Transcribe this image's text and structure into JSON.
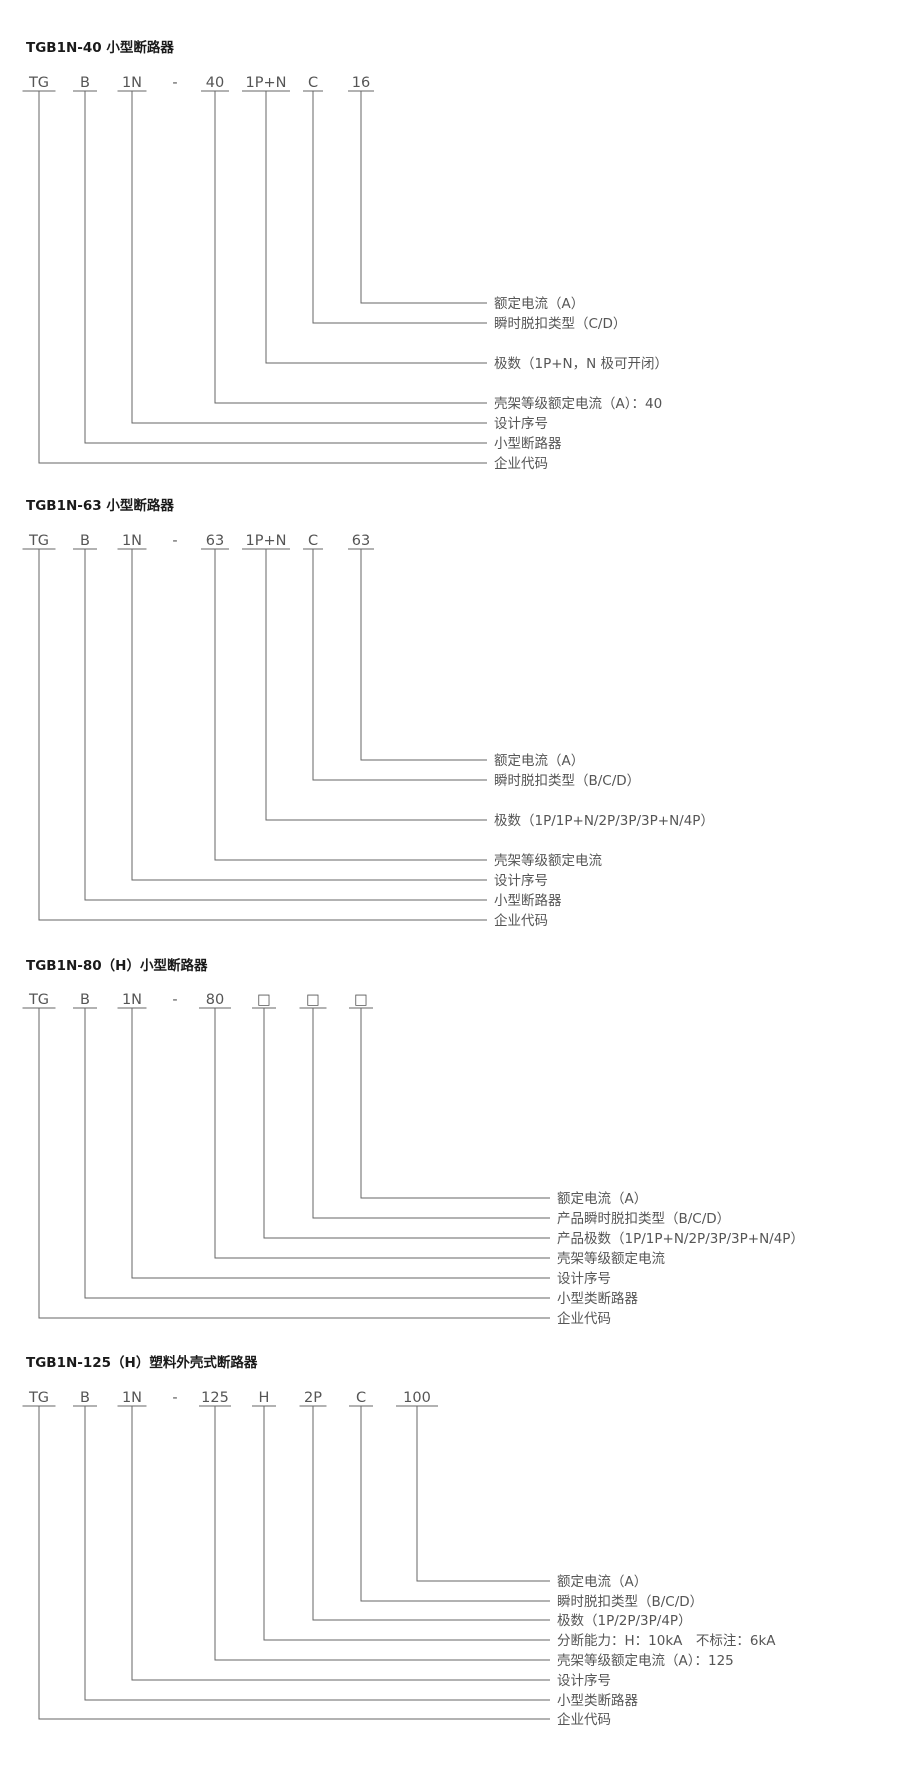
{
  "sections": [
    {
      "title": "TGB1N-40 小型断路器",
      "codes": [
        "TG",
        "B",
        "1N",
        "-",
        "40",
        "1P+N",
        "C",
        "16"
      ],
      "labels": [
        "额定电流（A）",
        "瞬时脱扣类型（C/D）",
        "极数（1P+N，N 极可开闭）",
        "壳架等级额定电流（A）：40",
        "设计序号",
        "小型断路器",
        "企业代码"
      ]
    },
    {
      "title": "TGB1N-63 小型断路器",
      "codes": [
        "TG",
        "B",
        "1N",
        "-",
        "63",
        "1P+N",
        "C",
        "63"
      ],
      "labels": [
        "额定电流（A）",
        "瞬时脱扣类型（B/C/D）",
        "极数（1P/1P+N/2P/3P/3P+N/4P）",
        "壳架等级额定电流",
        "设计序号",
        "小型断路器",
        "企业代码"
      ]
    },
    {
      "title": "TGB1N-80（H）小型断路器",
      "codes": [
        "TG",
        "B",
        "1N",
        "-",
        "80",
        "□",
        "□",
        "□"
      ],
      "labels": [
        "额定电流（A）",
        "产品瞬时脱扣类型（B/C/D）",
        "产品极数（1P/1P+N/2P/3P/3P+N/4P）",
        "壳架等级额定电流",
        "设计序号",
        "小型类断路器",
        "企业代码"
      ]
    },
    {
      "title": "TGB1N-125（H）塑料外壳式断路器",
      "codes": [
        "TG",
        "B",
        "1N",
        "-",
        "125",
        "H",
        "2P",
        "C",
        "100"
      ],
      "labels": [
        "额定电流（A）",
        "瞬时脱扣类型（B/C/D）",
        "极数（1P/2P/3P/4P）",
        "分断能力：H：10kA　不标注：6kA",
        "壳架等级额定电流（A）：125",
        "设计序号",
        "小型类断路器",
        "企业代码"
      ]
    }
  ],
  "colors": {
    "text": "#555555",
    "line": "#666666",
    "title": "#1a1a1a"
  }
}
